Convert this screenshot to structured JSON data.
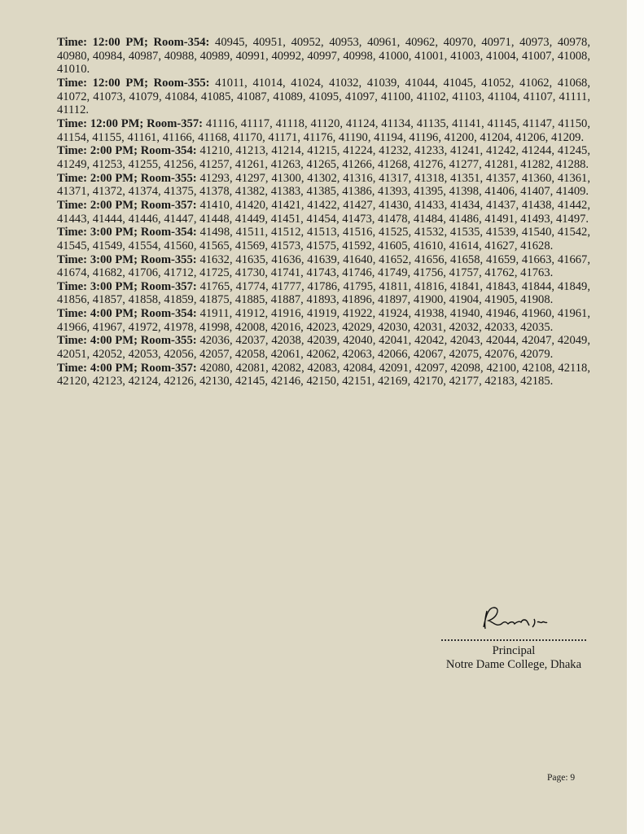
{
  "entries": [
    {
      "label": "Time: 12:00 PM; Room-354:",
      "rolls": "40945, 40951, 40952, 40953, 40961, 40962, 40970, 40971, 40973, 40978, 40980, 40984, 40987, 40988, 40989, 40991, 40992, 40997, 40998, 41000, 41001, 41003, 41004, 41007, 41008, 41010."
    },
    {
      "label": "Time: 12:00 PM; Room-355:",
      "rolls": "41011, 41014, 41024, 41032, 41039, 41044, 41045, 41052, 41062, 41068, 41072, 41073, 41079, 41084, 41085, 41087, 41089, 41095, 41097, 41100, 41102, 41103, 41104, 41107, 41111, 41112."
    },
    {
      "label": "Time: 12:00 PM; Room-357:",
      "rolls": "41116, 41117, 41118, 41120, 41124, 41134, 41135, 41141, 41145, 41147, 41150, 41154, 41155, 41161, 41166, 41168, 41170, 41171, 41176, 41190, 41194, 41196, 41200, 41204, 41206, 41209."
    },
    {
      "label": "Time: 2:00 PM; Room-354:",
      "rolls": "41210, 41213, 41214, 41215, 41224, 41232, 41233, 41241, 41242, 41244, 41245, 41249, 41253, 41255, 41256, 41257, 41261, 41263, 41265, 41266, 41268, 41276, 41277, 41281, 41282, 41288."
    },
    {
      "label": "Time: 2:00 PM; Room-355:",
      "rolls": "41293, 41297, 41300, 41302, 41316, 41317, 41318, 41351, 41357, 41360, 41361, 41371, 41372, 41374, 41375, 41378, 41382, 41383, 41385, 41386, 41393, 41395, 41398, 41406, 41407, 41409."
    },
    {
      "label": "Time: 2:00 PM; Room-357:",
      "rolls": "41410, 41420, 41421, 41422, 41427, 41430, 41433, 41434, 41437, 41438, 41442, 41443, 41444, 41446, 41447, 41448, 41449, 41451, 41454, 41473, 41478, 41484, 41486, 41491, 41493, 41497."
    },
    {
      "label": "Time: 3:00 PM; Room-354:",
      "rolls": "41498, 41511, 41512, 41513, 41516, 41525, 41532, 41535, 41539, 41540, 41542, 41545, 41549, 41554, 41560, 41565, 41569, 41573, 41575, 41592, 41605, 41610, 41614, 41627, 41628."
    },
    {
      "label": "Time: 3:00 PM; Room-355:",
      "rolls": "41632, 41635, 41636, 41639, 41640, 41652, 41656, 41658, 41659, 41663, 41667, 41674, 41682, 41706, 41712, 41725, 41730, 41741, 41743, 41746, 41749, 41756, 41757, 41762, 41763."
    },
    {
      "label": "Time: 3:00 PM; Room-357:",
      "rolls": "41765, 41774, 41777, 41786, 41795, 41811, 41816, 41841, 41843, 41844, 41849, 41856, 41857, 41858, 41859, 41875, 41885, 41887, 41893, 41896, 41897, 41900, 41904, 41905, 41908."
    },
    {
      "label": "Time: 4:00 PM; Room-354:",
      "rolls": "41911, 41912, 41916, 41919, 41922, 41924, 41938, 41940, 41946, 41960, 41961, 41966, 41967, 41972, 41978, 41998, 42008, 42016, 42023, 42029, 42030, 42031, 42032, 42033, 42035."
    },
    {
      "label": "Time: 4:00 PM; Room-355:",
      "rolls": "42036, 42037, 42038, 42039, 42040, 42041, 42042, 42043, 42044, 42047, 42049, 42051, 42052, 42053, 42056, 42057, 42058, 42061, 42062, 42063, 42066, 42067, 42075, 42076, 42079."
    },
    {
      "label": "Time: 4:00 PM; Room-357:",
      "rolls": "42080, 42081, 42082, 42083, 42084, 42091, 42097, 42098, 42100, 42108, 42118, 42120, 42123, 42124, 42126, 42130, 42145, 42146, 42150, 42151, 42169, 42170, 42177, 42183, 42185."
    }
  ],
  "signature": {
    "title": "Principal",
    "institution": "Notre Dame College, Dhaka"
  },
  "footer": {
    "page": "Page: 9"
  }
}
